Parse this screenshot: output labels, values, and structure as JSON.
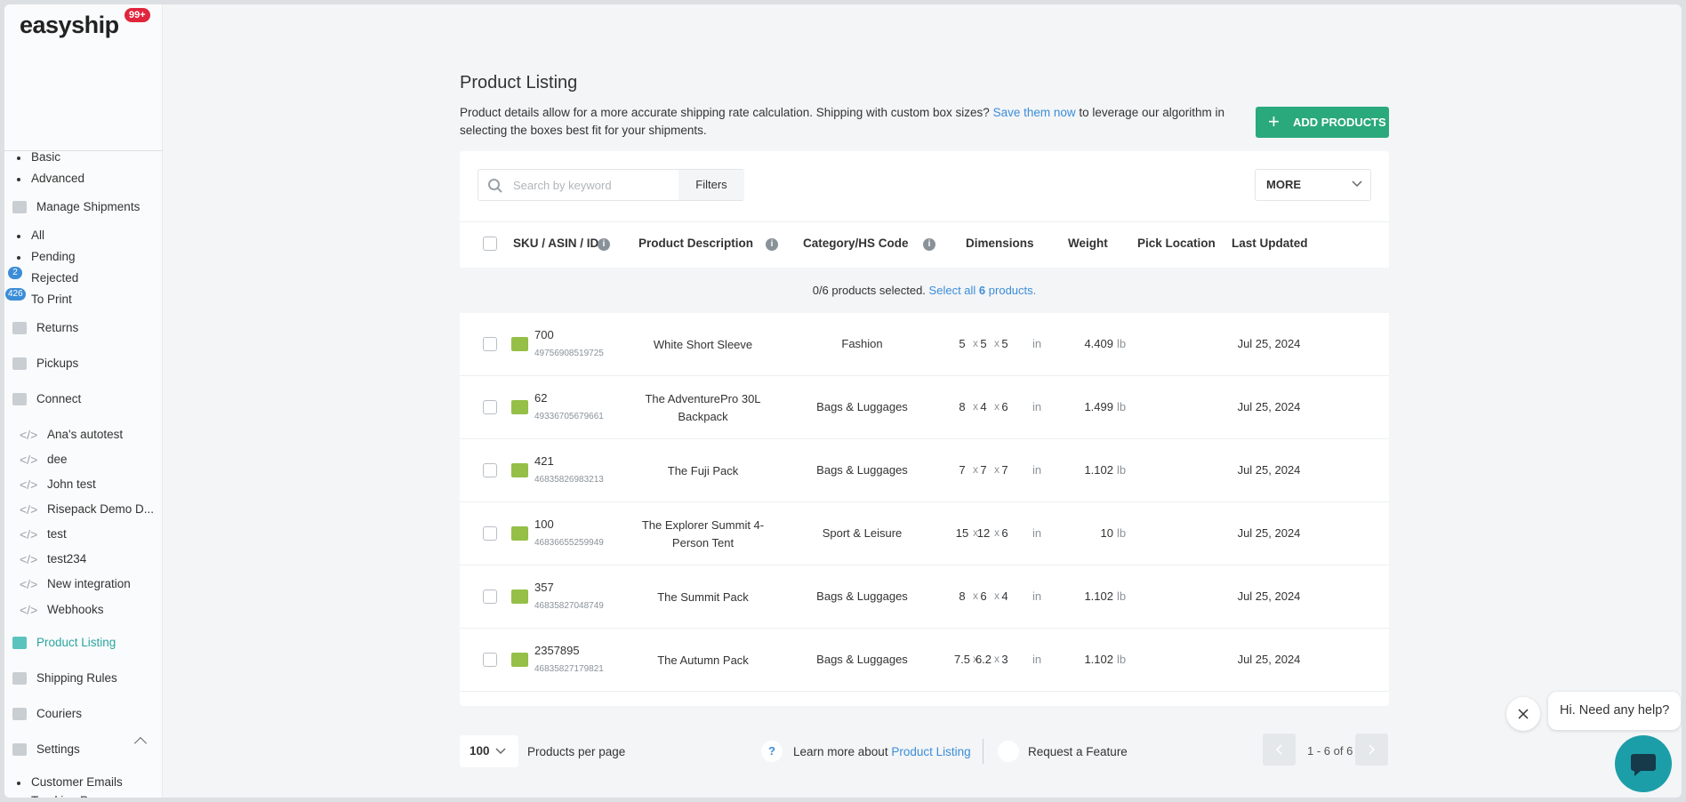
{
  "sidebar": {
    "logo": "easyship",
    "badge": "99+",
    "items": [
      "Basic",
      "Advanced",
      "Manage Shipments",
      "All",
      "Pending",
      "Rejected",
      "To Print",
      "Returns",
      "Pickups",
      "Connect",
      "Ana's autotest",
      "dee",
      "John test",
      "Risepack Demo D...",
      "test",
      "test234",
      "New integration",
      "Webhooks",
      "Product Listing",
      "Shipping Rules",
      "Couriers",
      "Settings",
      "Customer Emails",
      "Tracking Page"
    ],
    "counts": {
      "rejected": "2",
      "to_print": "426"
    }
  },
  "header": {
    "title": "Product Listing",
    "description": "Product details allow for a more accurate shipping rate calculation. Shipping with custom box sizes?",
    "link": "Save them now",
    "description_end": "to leverage our algorithm in selecting the boxes best fit for your shipments.",
    "button": "ADD PRODUCTS"
  },
  "toolbar": {
    "search_placeholder": "Search by keyword",
    "filters": "Filters",
    "more": "MORE"
  },
  "table": {
    "columns": [
      "SKU / ASIN / ID",
      "Product Description",
      "Category/HS Code",
      "Dimensions",
      "Weight",
      "Pick Location",
      "Last Updated"
    ],
    "selection": {
      "text": "0/6 products selected.",
      "select_all": "Select all",
      "count": "6",
      "suffix": "products."
    },
    "dim_sep": "x",
    "dim_unit": "in",
    "weight_unit": "lb",
    "rows": [
      {
        "sku": "700",
        "id": "49756908519725",
        "description": "White Short Sleeve",
        "category": "Fashion",
        "dims": [
          "5",
          "5",
          "5"
        ],
        "weight": "4.409",
        "updated": "Jul 25, 2024"
      },
      {
        "sku": "62",
        "id": "49336705679661",
        "description": "The AdventurePro 30L Backpack",
        "category": "Bags & Luggages",
        "dims": [
          "8",
          "4",
          "6"
        ],
        "weight": "1.499",
        "updated": "Jul 25, 2024"
      },
      {
        "sku": "421",
        "id": "46835826983213",
        "description": "The Fuji Pack",
        "category": "Bags & Luggages",
        "dims": [
          "7",
          "7",
          "7"
        ],
        "weight": "1.102",
        "updated": "Jul 25, 2024"
      },
      {
        "sku": "100",
        "id": "46836655259949",
        "description": "The Explorer Summit 4-Person Tent",
        "category": "Sport & Leisure",
        "dims": [
          "15",
          "12",
          "6"
        ],
        "weight": "10",
        "updated": "Jul 25, 2024"
      },
      {
        "sku": "357",
        "id": "46835827048749",
        "description": "The Summit Pack",
        "category": "Bags & Luggages",
        "dims": [
          "8",
          "6",
          "4"
        ],
        "weight": "1.102",
        "updated": "Jul 25, 2024"
      },
      {
        "sku": "2357895",
        "id": "46835827179821",
        "description": "The Autumn Pack",
        "category": "Bags & Luggages",
        "dims": [
          "7.5",
          "6.2",
          "3"
        ],
        "weight": "1.102",
        "updated": "Jul 25, 2024"
      }
    ]
  },
  "footer": {
    "per_page": "100",
    "per_page_label": "Products per page",
    "learn": "Learn more about",
    "learn_link": "Product Listing",
    "request": "Request a Feature",
    "pagination": "1 - 6 of 6"
  },
  "chat": {
    "message": "Hi. Need any help?"
  }
}
